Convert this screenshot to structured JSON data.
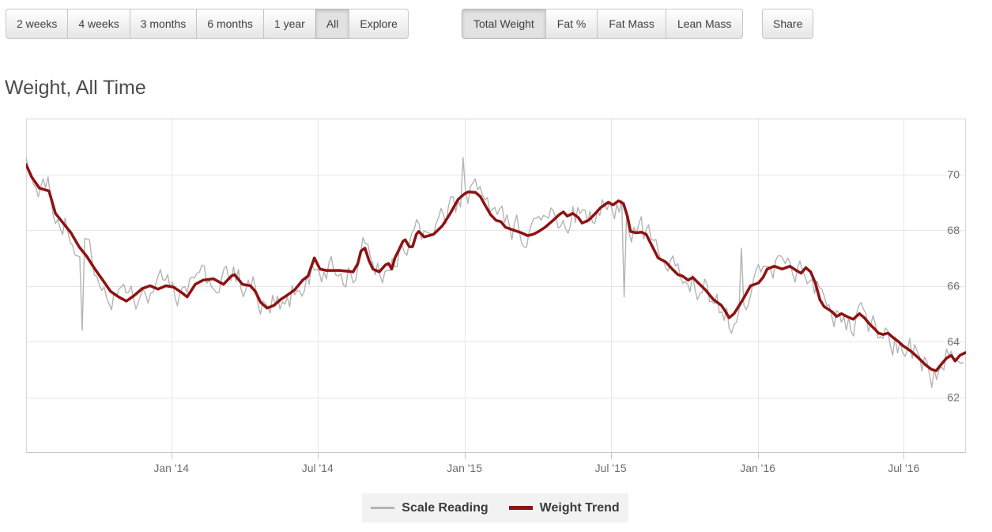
{
  "toolbar": {
    "range_buttons": [
      {
        "label": "2 weeks",
        "active": false
      },
      {
        "label": "4 weeks",
        "active": false
      },
      {
        "label": "3 months",
        "active": false
      },
      {
        "label": "6 months",
        "active": false
      },
      {
        "label": "1 year",
        "active": false
      },
      {
        "label": "All",
        "active": true
      },
      {
        "label": "Explore",
        "active": false
      }
    ],
    "metric_buttons": [
      {
        "label": "Total Weight",
        "active": true
      },
      {
        "label": "Fat %",
        "active": false
      },
      {
        "label": "Fat Mass",
        "active": false
      },
      {
        "label": "Lean Mass",
        "active": false
      }
    ],
    "share_label": "Share"
  },
  "page_title": "Weight, All Time",
  "chart_data": {
    "type": "line",
    "title": "Weight, All Time",
    "x_axis": {
      "unit": "months since Jul 2013",
      "range": [
        0,
        38.5
      ],
      "ticks": [
        {
          "m": 5.95,
          "label": "Jan '14"
        },
        {
          "m": 11.94,
          "label": "Jul '14"
        },
        {
          "m": 17.96,
          "label": "Jan '15"
        },
        {
          "m": 23.95,
          "label": "Jul '15"
        },
        {
          "m": 29.97,
          "label": "Jan '16"
        },
        {
          "m": 35.95,
          "label": "Jul '16"
        }
      ]
    },
    "y_axis": {
      "side": "right",
      "range": [
        60,
        72
      ],
      "ticks": [
        62,
        64,
        66,
        68,
        70
      ]
    },
    "grid": true,
    "legend": {
      "position": "bottom-center",
      "background": "#f2f2f2",
      "items": [
        {
          "label": "Scale Reading",
          "color": "#b4b4b4",
          "swatch_height": 3
        },
        {
          "label": "Weight Trend",
          "color": "#8e1212",
          "swatch_height": 5
        }
      ]
    },
    "colors": {
      "grid": "#e7e7e7",
      "plot_border": "#d8d8d8",
      "axis_line": "#c6c6c6",
      "tick_mark": "#b8cbdd",
      "axis_text": "#6e6e6e"
    },
    "series": [
      {
        "name": "Weight Trend",
        "color": "#8e1212",
        "width": 3.5,
        "points": [
          [
            0,
            70.35
          ],
          [
            0.23,
            69.9
          ],
          [
            0.55,
            69.5
          ],
          [
            0.94,
            69.4
          ],
          [
            1.2,
            68.6
          ],
          [
            1.52,
            68.25
          ],
          [
            1.84,
            67.9
          ],
          [
            2.17,
            67.4
          ],
          [
            2.49,
            67.05
          ],
          [
            2.82,
            66.6
          ],
          [
            3.14,
            66.2
          ],
          [
            3.46,
            65.8
          ],
          [
            3.79,
            65.6
          ],
          [
            4.11,
            65.45
          ],
          [
            4.43,
            65.65
          ],
          [
            4.76,
            65.9
          ],
          [
            5.08,
            66.0
          ],
          [
            5.4,
            65.88
          ],
          [
            5.73,
            66.0
          ],
          [
            6.05,
            65.95
          ],
          [
            6.38,
            65.75
          ],
          [
            6.6,
            65.6
          ],
          [
            6.93,
            66.05
          ],
          [
            7.25,
            66.2
          ],
          [
            7.67,
            66.25
          ],
          [
            8.09,
            66.05
          ],
          [
            8.41,
            66.35
          ],
          [
            8.54,
            66.4
          ],
          [
            8.87,
            66.05
          ],
          [
            9.19,
            66.0
          ],
          [
            9.39,
            65.8
          ],
          [
            9.61,
            65.4
          ],
          [
            9.87,
            65.2
          ],
          [
            10.16,
            65.3
          ],
          [
            10.42,
            65.5
          ],
          [
            10.68,
            65.65
          ],
          [
            11.0,
            65.85
          ],
          [
            11.33,
            66.2
          ],
          [
            11.55,
            66.35
          ],
          [
            11.81,
            67.0
          ],
          [
            12.04,
            66.6
          ],
          [
            12.3,
            66.55
          ],
          [
            12.85,
            66.55
          ],
          [
            13.4,
            66.5
          ],
          [
            13.59,
            66.8
          ],
          [
            13.72,
            67.25
          ],
          [
            13.88,
            67.35
          ],
          [
            14.05,
            66.9
          ],
          [
            14.21,
            66.6
          ],
          [
            14.47,
            66.5
          ],
          [
            14.72,
            66.75
          ],
          [
            14.85,
            66.8
          ],
          [
            14.98,
            66.6
          ],
          [
            15.11,
            67.0
          ],
          [
            15.28,
            67.3
          ],
          [
            15.44,
            67.6
          ],
          [
            15.53,
            67.65
          ],
          [
            15.7,
            67.4
          ],
          [
            15.83,
            67.4
          ],
          [
            15.99,
            67.85
          ],
          [
            16.08,
            67.95
          ],
          [
            16.31,
            67.75
          ],
          [
            16.5,
            67.8
          ],
          [
            16.7,
            67.85
          ],
          [
            17.05,
            68.15
          ],
          [
            17.38,
            68.6
          ],
          [
            17.7,
            69.1
          ],
          [
            17.96,
            69.3
          ],
          [
            18.12,
            69.37
          ],
          [
            18.41,
            69.35
          ],
          [
            18.61,
            69.2
          ],
          [
            18.8,
            68.9
          ],
          [
            19.03,
            68.55
          ],
          [
            19.25,
            68.35
          ],
          [
            19.45,
            68.3
          ],
          [
            19.64,
            68.1
          ],
          [
            19.96,
            68.0
          ],
          [
            20.29,
            67.9
          ],
          [
            20.55,
            67.8
          ],
          [
            20.78,
            67.85
          ],
          [
            21.0,
            67.95
          ],
          [
            21.26,
            68.1
          ],
          [
            21.59,
            68.35
          ],
          [
            21.84,
            68.55
          ],
          [
            22.01,
            68.65
          ],
          [
            22.17,
            68.5
          ],
          [
            22.39,
            68.6
          ],
          [
            22.62,
            68.45
          ],
          [
            22.78,
            68.25
          ],
          [
            23.04,
            68.35
          ],
          [
            23.27,
            68.55
          ],
          [
            23.53,
            68.8
          ],
          [
            23.85,
            69.0
          ],
          [
            24.04,
            68.9
          ],
          [
            24.27,
            69.05
          ],
          [
            24.47,
            68.95
          ],
          [
            24.63,
            68.5
          ],
          [
            24.76,
            67.95
          ],
          [
            24.98,
            67.9
          ],
          [
            25.21,
            67.92
          ],
          [
            25.4,
            67.85
          ],
          [
            25.6,
            67.5
          ],
          [
            25.89,
            67.0
          ],
          [
            26.21,
            66.85
          ],
          [
            26.47,
            66.6
          ],
          [
            26.7,
            66.4
          ],
          [
            26.89,
            66.35
          ],
          [
            27.12,
            66.2
          ],
          [
            27.31,
            66.3
          ],
          [
            27.54,
            66.1
          ],
          [
            27.83,
            65.85
          ],
          [
            28.16,
            65.5
          ],
          [
            28.48,
            65.3
          ],
          [
            28.67,
            65.05
          ],
          [
            28.8,
            64.85
          ],
          [
            29.0,
            65.0
          ],
          [
            29.22,
            65.3
          ],
          [
            29.39,
            65.55
          ],
          [
            29.68,
            66.0
          ],
          [
            30.0,
            66.1
          ],
          [
            30.19,
            66.3
          ],
          [
            30.36,
            66.6
          ],
          [
            30.65,
            66.7
          ],
          [
            30.97,
            66.6
          ],
          [
            31.29,
            66.7
          ],
          [
            31.55,
            66.55
          ],
          [
            31.75,
            66.45
          ],
          [
            31.94,
            66.65
          ],
          [
            32.14,
            66.5
          ],
          [
            32.33,
            66.1
          ],
          [
            32.52,
            65.5
          ],
          [
            32.69,
            65.25
          ],
          [
            32.88,
            65.15
          ],
          [
            33.04,
            65.05
          ],
          [
            33.2,
            64.9
          ],
          [
            33.4,
            65.0
          ],
          [
            33.62,
            64.9
          ],
          [
            33.88,
            64.8
          ],
          [
            34.14,
            65.0
          ],
          [
            34.34,
            64.85
          ],
          [
            34.53,
            64.65
          ],
          [
            34.76,
            64.45
          ],
          [
            34.92,
            64.3
          ],
          [
            35.11,
            64.25
          ],
          [
            35.31,
            64.3
          ],
          [
            35.5,
            64.15
          ],
          [
            35.73,
            64.0
          ],
          [
            35.92,
            63.85
          ],
          [
            36.25,
            63.65
          ],
          [
            36.57,
            63.4
          ],
          [
            36.86,
            63.15
          ],
          [
            37.09,
            63.0
          ],
          [
            37.28,
            62.95
          ],
          [
            37.51,
            63.2
          ],
          [
            37.7,
            63.4
          ],
          [
            37.9,
            63.5
          ],
          [
            38.06,
            63.3
          ],
          [
            38.25,
            63.5
          ],
          [
            38.48,
            63.6
          ]
        ]
      },
      {
        "name": "Scale Reading",
        "color": "#b4b4b4",
        "width": 1.4,
        "derived_noise": {
          "from": "Weight Trend",
          "step": 0.1,
          "seed": 20,
          "ar": 0.45,
          "innovation": 0.9,
          "amplitude": 0.55,
          "outliers": [
            [
              2.33,
              64.4
            ],
            [
              17.93,
              70.6
            ],
            [
              24.53,
              65.6
            ],
            [
              29.26,
              67.35
            ],
            [
              37.12,
              62.35
            ]
          ]
        }
      }
    ]
  }
}
